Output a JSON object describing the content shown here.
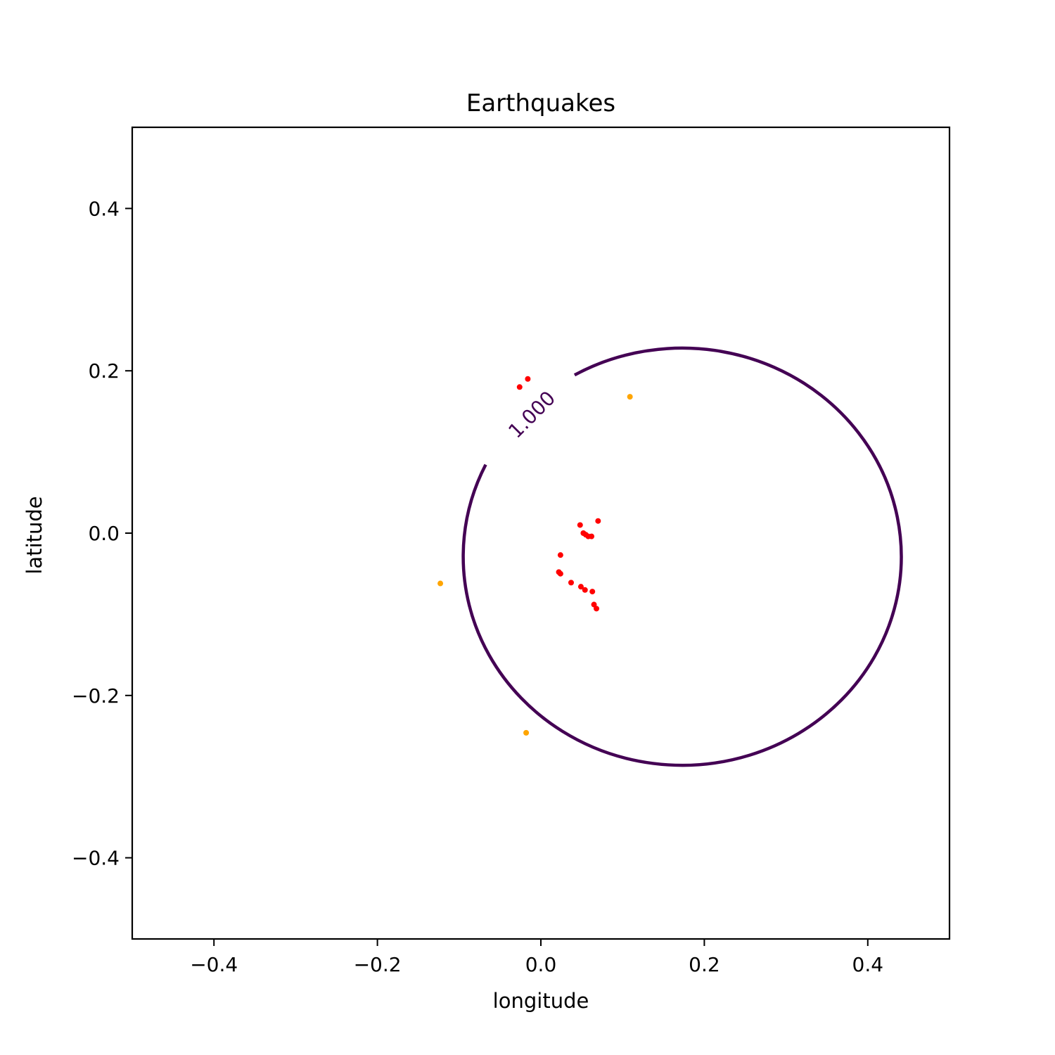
{
  "chart_data": {
    "type": "scatter",
    "title": "Earthquakes",
    "xlabel": "longitude",
    "ylabel": "latitude",
    "xlim": [
      -0.5,
      0.5
    ],
    "ylim": [
      -0.5,
      0.5
    ],
    "grid": false,
    "xticks": [
      -0.4,
      -0.2,
      0.0,
      0.2,
      0.4
    ],
    "yticks": [
      -0.4,
      -0.2,
      0.0,
      0.2,
      0.4
    ],
    "xtick_labels": [
      "−0.4",
      "−0.2",
      "0.0",
      "0.2",
      "0.4"
    ],
    "ytick_labels": [
      "−0.4",
      "−0.2",
      "0.0",
      "0.2",
      "0.4"
    ],
    "contour": {
      "level_label": "1.000",
      "color": "#440154",
      "center": [
        0.173,
        -0.029
      ],
      "radius_x": 0.268,
      "radius_y": 0.257,
      "label_position": [
        -0.011,
        0.146
      ]
    },
    "series": [
      {
        "color": "#ff0000",
        "points": [
          {
            "x": -0.026,
            "y": 0.18
          },
          {
            "x": -0.016,
            "y": 0.19
          },
          {
            "x": 0.048,
            "y": 0.01
          },
          {
            "x": 0.07,
            "y": 0.015
          },
          {
            "x": 0.052,
            "y": 0.0
          },
          {
            "x": 0.055,
            "y": -0.002
          },
          {
            "x": 0.058,
            "y": -0.004
          },
          {
            "x": 0.062,
            "y": -0.004
          },
          {
            "x": 0.024,
            "y": -0.027
          },
          {
            "x": 0.022,
            "y": -0.048
          },
          {
            "x": 0.024,
            "y": -0.05
          },
          {
            "x": 0.037,
            "y": -0.061
          },
          {
            "x": 0.049,
            "y": -0.066
          },
          {
            "x": 0.054,
            "y": -0.07
          },
          {
            "x": 0.063,
            "y": -0.072
          },
          {
            "x": 0.065,
            "y": -0.088
          },
          {
            "x": 0.068,
            "y": -0.093
          }
        ]
      },
      {
        "color": "#ffa500",
        "points": [
          {
            "x": 0.109,
            "y": 0.168
          },
          {
            "x": -0.123,
            "y": -0.062
          },
          {
            "x": -0.018,
            "y": -0.246
          }
        ]
      }
    ]
  }
}
